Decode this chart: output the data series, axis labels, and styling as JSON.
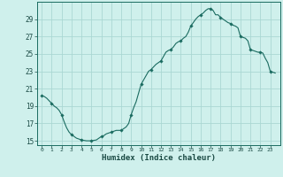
{
  "xlabel": "Humidex (Indice chaleur)",
  "bg_color": "#cff0ec",
  "grid_color": "#aad8d3",
  "line_color": "#1a6b60",
  "marker_color": "#1a6b60",
  "x_values": [
    0,
    0.25,
    0.5,
    0.75,
    1,
    1.25,
    1.5,
    1.75,
    2,
    2.25,
    2.5,
    2.75,
    3,
    3.25,
    3.5,
    3.75,
    4,
    4.25,
    4.5,
    4.75,
    5,
    5.25,
    5.5,
    5.75,
    6,
    6.25,
    6.5,
    6.75,
    7,
    7.25,
    7.5,
    7.75,
    8,
    8.25,
    8.5,
    8.75,
    9,
    9.25,
    9.5,
    9.75,
    10,
    10.25,
    10.5,
    10.75,
    11,
    11.25,
    11.5,
    11.75,
    12,
    12.25,
    12.5,
    12.75,
    13,
    13.25,
    13.5,
    13.75,
    14,
    14.25,
    14.5,
    14.75,
    15,
    15.25,
    15.5,
    15.75,
    16,
    16.25,
    16.5,
    16.75,
    17,
    17.25,
    17.5,
    17.75,
    18,
    18.25,
    18.5,
    18.75,
    19,
    19.25,
    19.5,
    19.75,
    20,
    20.25,
    20.5,
    20.75,
    21,
    21.25,
    21.5,
    21.75,
    22,
    22.25,
    22.5,
    22.75,
    23,
    23.5
  ],
  "y_values": [
    20.2,
    20.1,
    19.9,
    19.6,
    19.3,
    19.0,
    18.8,
    18.5,
    18.0,
    17.2,
    16.5,
    16.0,
    15.7,
    15.5,
    15.3,
    15.2,
    15.1,
    15.05,
    15.0,
    15.0,
    15.0,
    15.05,
    15.1,
    15.3,
    15.5,
    15.6,
    15.8,
    15.9,
    16.0,
    16.1,
    16.2,
    16.2,
    16.2,
    16.4,
    16.6,
    17.0,
    18.0,
    18.8,
    19.5,
    20.5,
    21.5,
    22.0,
    22.5,
    23.0,
    23.2,
    23.5,
    23.8,
    24.0,
    24.2,
    24.7,
    25.2,
    25.4,
    25.5,
    25.8,
    26.2,
    26.4,
    26.5,
    26.8,
    27.0,
    27.5,
    28.2,
    28.6,
    29.0,
    29.3,
    29.5,
    29.7,
    30.0,
    30.2,
    30.2,
    30.0,
    29.5,
    29.5,
    29.2,
    29.0,
    28.8,
    28.6,
    28.5,
    28.3,
    28.2,
    28.0,
    27.0,
    26.9,
    26.8,
    26.5,
    25.5,
    25.4,
    25.3,
    25.2,
    25.2,
    25.1,
    24.5,
    24.0,
    23.0,
    22.8
  ],
  "ylim": [
    14.5,
    31
  ],
  "xlim": [
    -0.5,
    24
  ],
  "yticks": [
    15,
    17,
    19,
    21,
    23,
    25,
    27,
    29
  ],
  "xticks": [
    0,
    1,
    2,
    3,
    4,
    5,
    6,
    7,
    8,
    9,
    10,
    11,
    12,
    13,
    14,
    15,
    16,
    17,
    18,
    19,
    20,
    21,
    22,
    23
  ],
  "marker_every": 4
}
